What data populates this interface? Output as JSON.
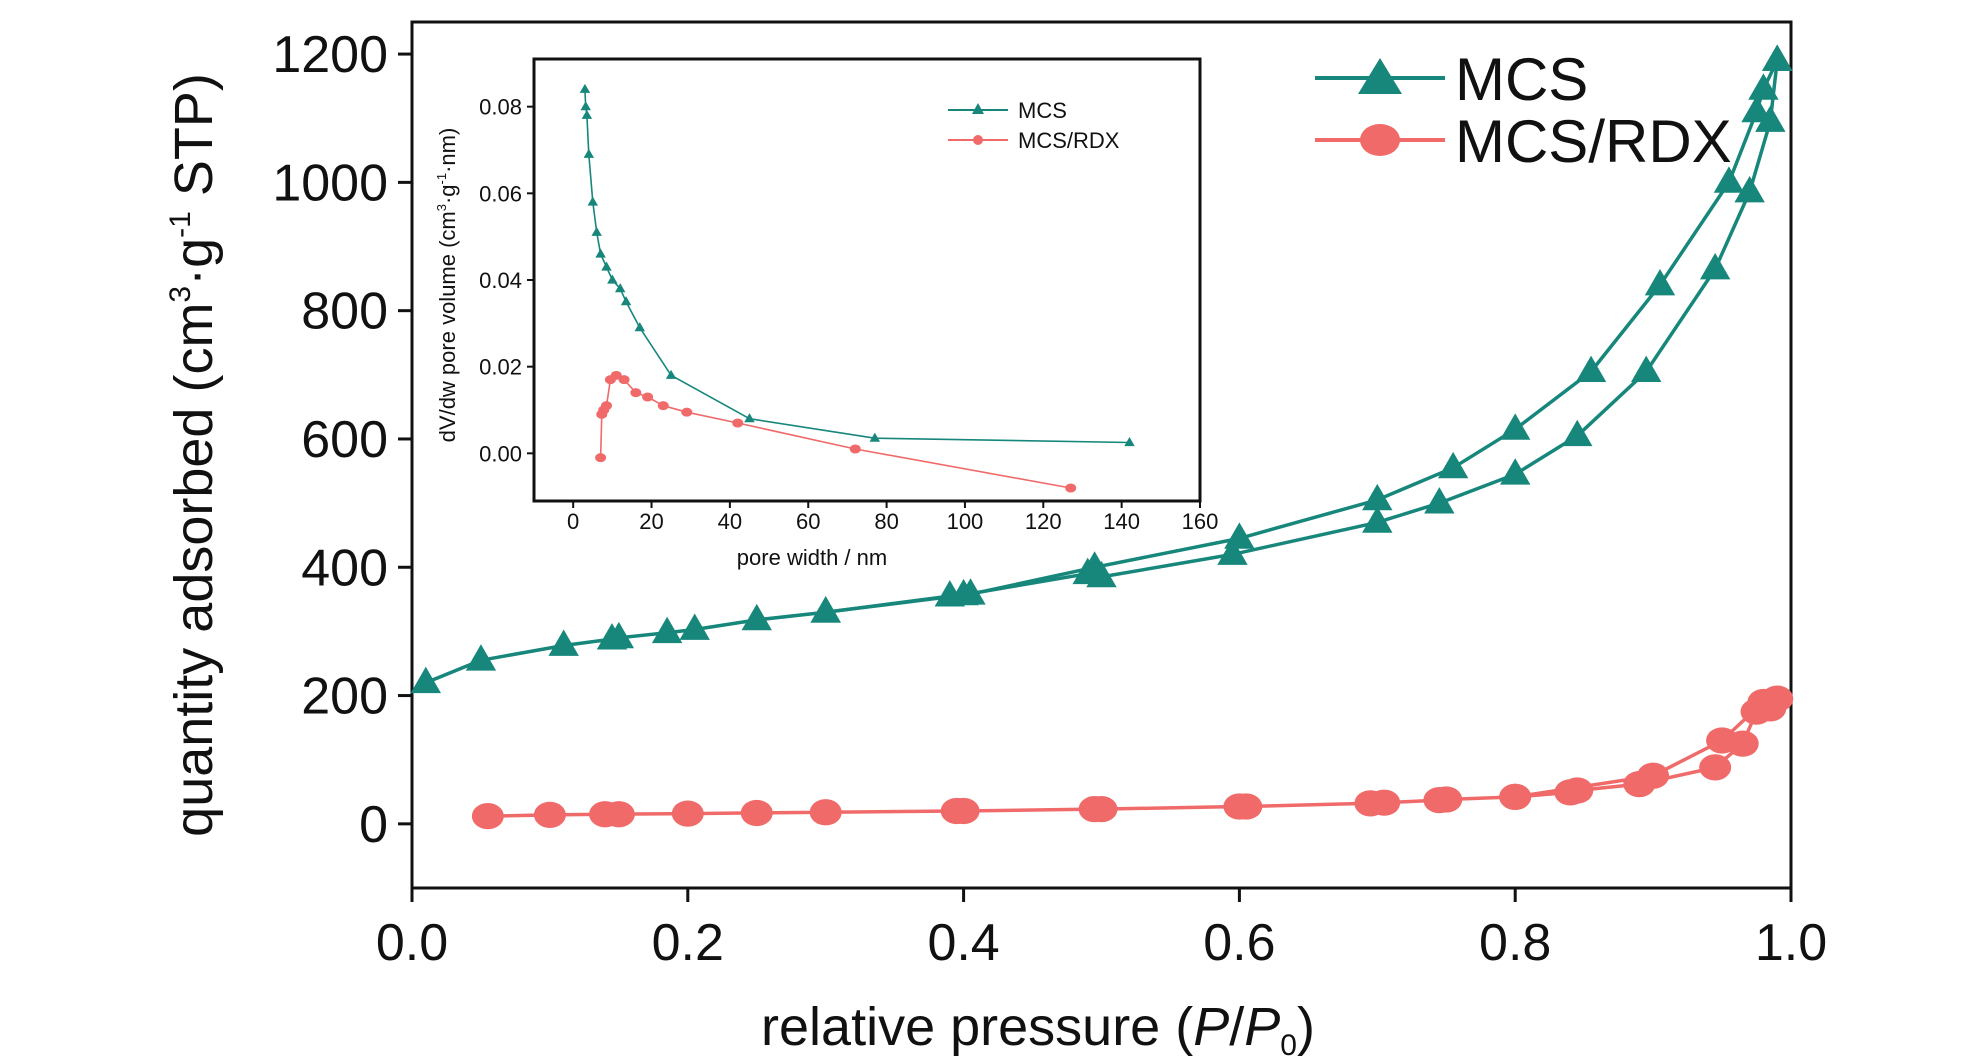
{
  "chart_data": [
    {
      "type": "line",
      "xlabel_text": "relative pressure (",
      "xlabel_p": "P",
      "xlabel_slash": "/",
      "xlabel_p0": "P",
      "xlabel_sub": "0",
      "xlabel_close": ")",
      "ylabel_a": "quantity adsorbed (cm",
      "ylabel_sup3": "3",
      "ylabel_b": "·g",
      "ylabel_supm1": "-1",
      "ylabel_c": " STP)",
      "xlim": [
        0.0,
        1.0
      ],
      "ylim": [
        -100,
        1250
      ],
      "xticks": [
        "0.0",
        "0.2",
        "0.4",
        "0.6",
        "0.8",
        "1.0"
      ],
      "yticks": [
        "0",
        "200",
        "400",
        "600",
        "800",
        "1000",
        "1200"
      ],
      "legend_position": "top-right",
      "series": [
        {
          "name": "MCS",
          "color": "#17877c",
          "marker": "triangle",
          "branches": [
            {
              "x": [
                0.01,
                0.05,
                0.11,
                0.145,
                0.15,
                0.185,
                0.205,
                0.25,
                0.3,
                0.39,
                0.4,
                0.49,
                0.5,
                0.595,
                0.7,
                0.745,
                0.8,
                0.845,
                0.895,
                0.945,
                0.97,
                0.985,
                0.99
              ],
              "y": [
                220,
                255,
                278,
                288,
                290,
                298,
                303,
                318,
                330,
                355,
                357,
                390,
                385,
                420,
                470,
                500,
                545,
                605,
                705,
                865,
                985,
                1095,
                1190
              ]
            },
            {
              "x": [
                0.99,
                0.98,
                0.975,
                0.955,
                0.905,
                0.855,
                0.8,
                0.755,
                0.7,
                0.6,
                0.495,
                0.405,
                0.3
              ],
              "y": [
                1190,
                1145,
                1110,
                1000,
                840,
                705,
                615,
                555,
                505,
                445,
                400,
                358,
                330
              ]
            }
          ]
        },
        {
          "name": "MCS/RDX",
          "color": "#f06a6a",
          "marker": "circle",
          "branches": [
            {
              "x": [
                0.055,
                0.1,
                0.14,
                0.15,
                0.2,
                0.25,
                0.3,
                0.395,
                0.4,
                0.495,
                0.5,
                0.6,
                0.605,
                0.695,
                0.705,
                0.745,
                0.75,
                0.8,
                0.84,
                0.845,
                0.89,
                0.945,
                0.965,
                0.975,
                0.985,
                0.99
              ],
              "y": [
                12,
                14,
                15,
                15,
                16,
                17,
                18,
                20,
                20,
                23,
                23,
                27,
                27,
                32,
                33,
                37,
                38,
                42,
                49,
                52,
                62,
                88,
                125,
                175,
                180,
                195
              ]
            },
            {
              "x": [
                0.99,
                0.98,
                0.95,
                0.9,
                0.8
              ],
              "y": [
                195,
                190,
                130,
                75,
                42
              ]
            }
          ]
        }
      ]
    },
    {
      "type": "line",
      "xlabel": "pore width / nm",
      "ylabel_a": "dV/dw pore volume (cm",
      "ylabel_sup3": "3",
      "ylabel_b": "·g",
      "ylabel_supm1": "-1",
      "ylabel_c": "·nm)",
      "xlim": [
        -10,
        160
      ],
      "ylim": [
        -0.011,
        0.091
      ],
      "xticks": [
        "0",
        "20",
        "40",
        "60",
        "80",
        "100",
        "120",
        "140",
        "160"
      ],
      "yticks": [
        "0.00",
        "0.02",
        "0.04",
        "0.06",
        "0.08"
      ],
      "legend_position": "top-right",
      "series": [
        {
          "name": "MCS",
          "color": "#17877c",
          "marker": "triangle",
          "x": [
            3,
            3.2,
            3.5,
            4,
            5,
            6,
            7,
            8.5,
            10,
            12,
            13.5,
            17,
            25,
            45,
            77,
            142
          ],
          "y": [
            0.084,
            0.08,
            0.078,
            0.069,
            0.058,
            0.051,
            0.046,
            0.043,
            0.04,
            0.038,
            0.035,
            0.029,
            0.018,
            0.008,
            0.0035,
            0.0025
          ]
        },
        {
          "name": "MCS/RDX",
          "color": "#f06a6a",
          "marker": "circle",
          "x": [
            7,
            7.3,
            7.8,
            8.5,
            9.5,
            11,
            13,
            16,
            19,
            23,
            29,
            42,
            72,
            127
          ],
          "y": [
            -0.001,
            0.009,
            0.01,
            0.011,
            0.017,
            0.018,
            0.017,
            0.014,
            0.013,
            0.011,
            0.0095,
            0.007,
            0.001,
            -0.008
          ]
        }
      ]
    }
  ]
}
